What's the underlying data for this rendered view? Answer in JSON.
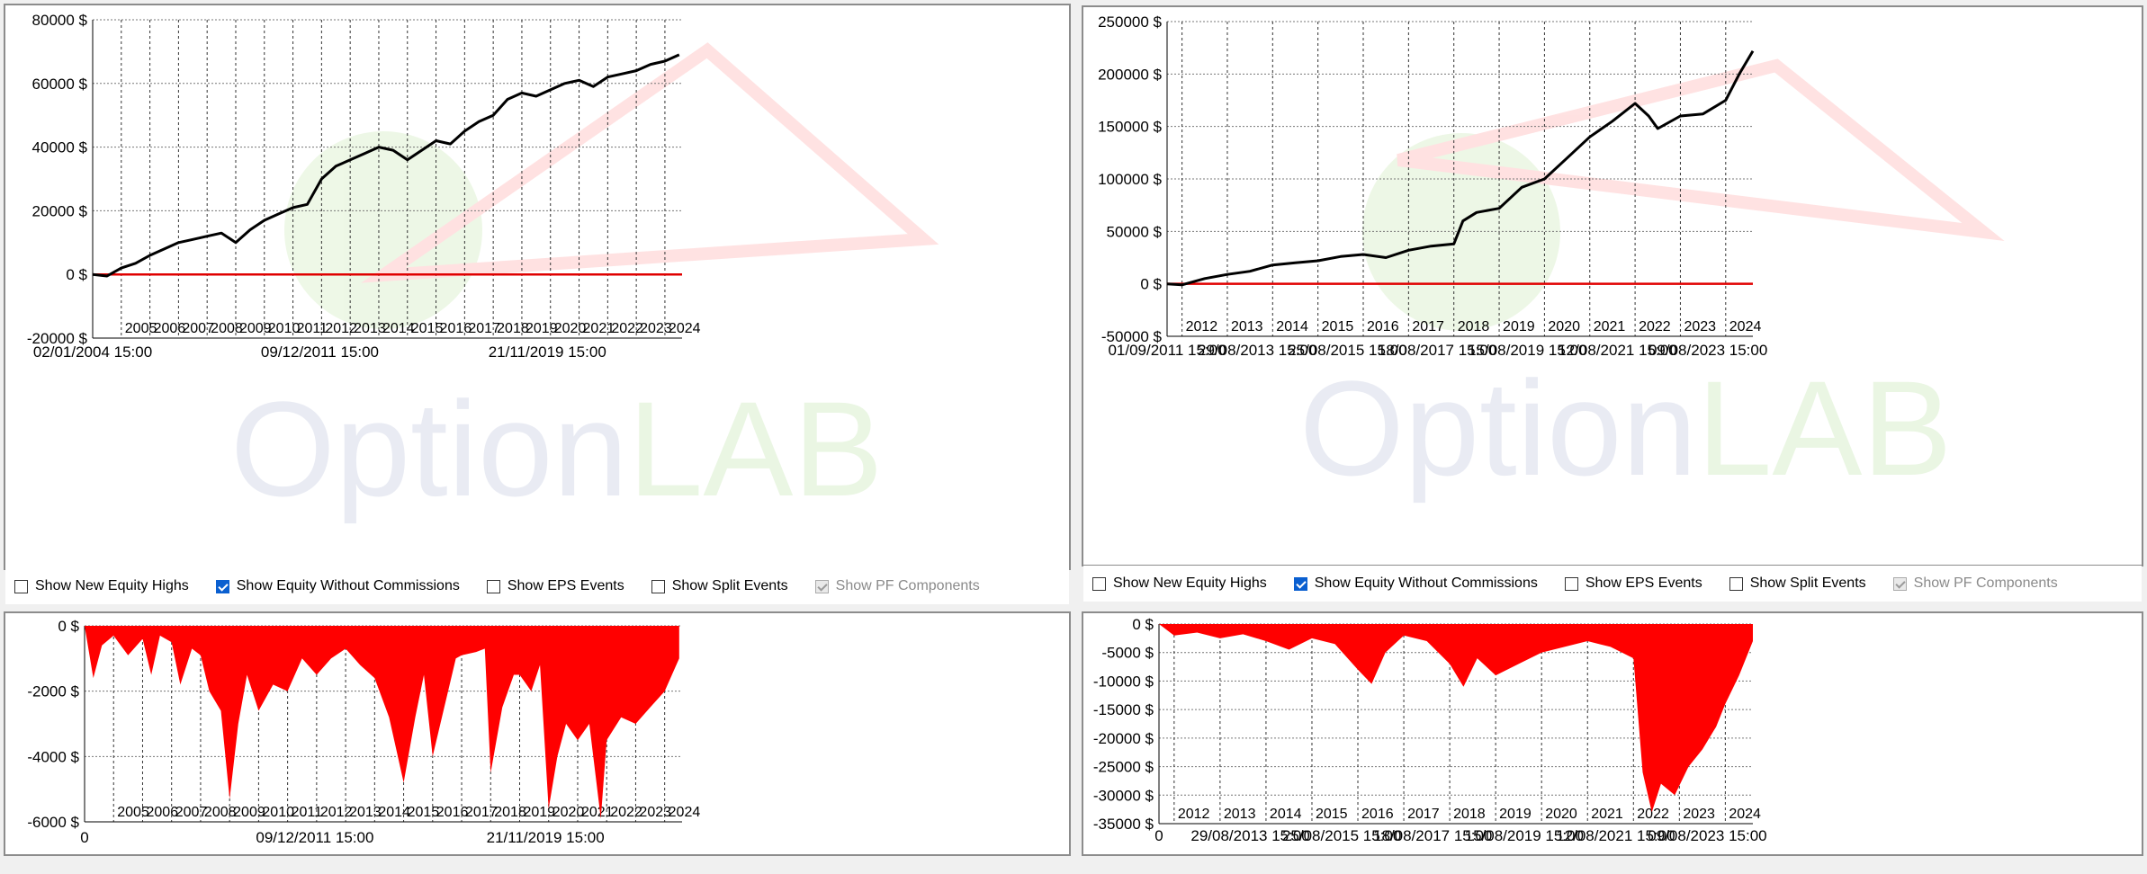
{
  "toolbar": {
    "show_new_equity_highs": "Show New Equity Highs",
    "show_equity_without_commissions": "Show Equity Without Commissions",
    "show_eps_events": "Show EPS Events",
    "show_split_events": "Show Split Events",
    "show_pf_components": "Show PF Components"
  },
  "chart_data": [
    {
      "type": "line",
      "id": "equity_left",
      "y_ticks": [
        "80000 $",
        "60000 $",
        "40000 $",
        "20000 $",
        "0 $",
        "-20000 $"
      ],
      "ylim": [
        -20000,
        80000
      ],
      "xlim": [
        2004.0,
        2024.6
      ],
      "year_labels": [
        "2005",
        "2006",
        "2007",
        "2008",
        "2009",
        "2010",
        "2011",
        "2012",
        "2013",
        "2014",
        "2015",
        "2016",
        "2017",
        "2018",
        "2019",
        "2020",
        "2021",
        "2022",
        "2023",
        "2024"
      ],
      "date_labels": [
        {
          "t": 2004.0,
          "label": "02/01/2004 15:00"
        },
        {
          "t": 2011.94,
          "label": "09/12/2011 15:00"
        },
        {
          "t": 2019.89,
          "label": "21/11/2019 15:00"
        }
      ],
      "equity": [
        [
          2004.0,
          0
        ],
        [
          2004.5,
          -500
        ],
        [
          2005,
          2000
        ],
        [
          2005.5,
          3500
        ],
        [
          2006,
          6000
        ],
        [
          2006.5,
          8000
        ],
        [
          2007,
          10000
        ],
        [
          2007.5,
          11000
        ],
        [
          2008,
          12000
        ],
        [
          2008.5,
          13000
        ],
        [
          2009,
          10000
        ],
        [
          2009.5,
          14000
        ],
        [
          2010,
          17000
        ],
        [
          2010.5,
          19000
        ],
        [
          2011,
          21000
        ],
        [
          2011.5,
          22000
        ],
        [
          2012,
          30000
        ],
        [
          2012.5,
          34000
        ],
        [
          2013,
          36000
        ],
        [
          2013.5,
          38000
        ],
        [
          2014,
          40000
        ],
        [
          2014.5,
          39000
        ],
        [
          2015,
          36000
        ],
        [
          2015.5,
          39000
        ],
        [
          2016,
          42000
        ],
        [
          2016.5,
          41000
        ],
        [
          2017,
          45000
        ],
        [
          2017.5,
          48000
        ],
        [
          2018,
          50000
        ],
        [
          2018.5,
          55000
        ],
        [
          2019,
          57000
        ],
        [
          2019.5,
          56000
        ],
        [
          2020,
          58000
        ],
        [
          2020.5,
          60000
        ],
        [
          2021,
          61000
        ],
        [
          2021.5,
          59000
        ],
        [
          2022,
          62000
        ],
        [
          2022.5,
          63000
        ],
        [
          2023,
          64000
        ],
        [
          2023.5,
          66000
        ],
        [
          2024,
          67000
        ],
        [
          2024.5,
          69000
        ]
      ],
      "zero_line_color": "#e00000",
      "line_color": "#000000"
    },
    {
      "type": "line",
      "id": "equity_right",
      "y_ticks": [
        "250000 $",
        "200000 $",
        "150000 $",
        "100000 $",
        "50000 $",
        "0 $",
        "-50000 $"
      ],
      "ylim": [
        -50000,
        250000
      ],
      "xlim": [
        2011.67,
        2024.6
      ],
      "year_labels": [
        "2012",
        "2013",
        "2014",
        "2015",
        "2016",
        "2017",
        "2018",
        "2019",
        "2020",
        "2021",
        "2022",
        "2023",
        "2024"
      ],
      "date_labels": [
        {
          "t": 2011.67,
          "label": "01/09/2011 15:00"
        },
        {
          "t": 2013.66,
          "label": "29/08/2013 15:00"
        },
        {
          "t": 2015.65,
          "label": "25/08/2015 15:00"
        },
        {
          "t": 2017.63,
          "label": "18/08/2017 15:00"
        },
        {
          "t": 2019.62,
          "label": "15/08/2019 15:00"
        },
        {
          "t": 2021.61,
          "label": "12/08/2021 15:00"
        },
        {
          "t": 2023.61,
          "label": "09/08/2023 15:00"
        }
      ],
      "equity": [
        [
          2011.67,
          0
        ],
        [
          2012,
          -1000
        ],
        [
          2012.5,
          5000
        ],
        [
          2013,
          9000
        ],
        [
          2013.5,
          12000
        ],
        [
          2014,
          18000
        ],
        [
          2014.5,
          20000
        ],
        [
          2015,
          22000
        ],
        [
          2015.5,
          26000
        ],
        [
          2016,
          28000
        ],
        [
          2016.5,
          25000
        ],
        [
          2017,
          32000
        ],
        [
          2017.5,
          36000
        ],
        [
          2018,
          38000
        ],
        [
          2018.2,
          60000
        ],
        [
          2018.5,
          68000
        ],
        [
          2019,
          72000
        ],
        [
          2019.5,
          92000
        ],
        [
          2020,
          100000
        ],
        [
          2020.5,
          120000
        ],
        [
          2021,
          140000
        ],
        [
          2021.5,
          155000
        ],
        [
          2022,
          172000
        ],
        [
          2022.3,
          160000
        ],
        [
          2022.5,
          148000
        ],
        [
          2023,
          160000
        ],
        [
          2023.5,
          162000
        ],
        [
          2024,
          175000
        ],
        [
          2024.3,
          200000
        ],
        [
          2024.6,
          222000
        ]
      ],
      "zero_line_color": "#e00000",
      "line_color": "#000000"
    },
    {
      "type": "area",
      "id": "drawdown_left",
      "y_ticks": [
        "0 $",
        "-2000 $",
        "-4000 $",
        "-6000 $"
      ],
      "ylim": [
        -6000,
        0
      ],
      "xlim": [
        2004.0,
        2024.6
      ],
      "year_labels": [
        "2005",
        "2006",
        "2007",
        "2008",
        "2009",
        "2010",
        "2011",
        "2012",
        "2013",
        "2014",
        "2015",
        "2016",
        "2017",
        "2018",
        "2019",
        "2020",
        "2021",
        "2022",
        "2023",
        "2024"
      ],
      "date_labels": [
        {
          "t": 2004.0,
          "label": "0"
        },
        {
          "t": 2011.94,
          "label": "09/12/2011 15:00"
        },
        {
          "t": 2019.89,
          "label": "21/11/2019 15:00"
        }
      ],
      "drawdown": [
        [
          2004.0,
          0
        ],
        [
          2004.3,
          -1600
        ],
        [
          2004.6,
          -600
        ],
        [
          2005,
          -300
        ],
        [
          2005.5,
          -900
        ],
        [
          2006,
          -400
        ],
        [
          2006.3,
          -1500
        ],
        [
          2006.6,
          -300
        ],
        [
          2007,
          -500
        ],
        [
          2007.3,
          -1800
        ],
        [
          2007.7,
          -700
        ],
        [
          2008,
          -900
        ],
        [
          2008.3,
          -2000
        ],
        [
          2008.7,
          -2600
        ],
        [
          2009,
          -5300
        ],
        [
          2009.3,
          -3000
        ],
        [
          2009.6,
          -1500
        ],
        [
          2010,
          -2600
        ],
        [
          2010.5,
          -1800
        ],
        [
          2011,
          -2000
        ],
        [
          2011.5,
          -1000
        ],
        [
          2012,
          -1500
        ],
        [
          2012.5,
          -1000
        ],
        [
          2013,
          -700
        ],
        [
          2013.5,
          -1200
        ],
        [
          2014,
          -1600
        ],
        [
          2014.5,
          -2800
        ],
        [
          2015,
          -4800
        ],
        [
          2015.4,
          -2800
        ],
        [
          2015.7,
          -1500
        ],
        [
          2016,
          -4000
        ],
        [
          2016.4,
          -2500
        ],
        [
          2016.8,
          -1000
        ],
        [
          2017,
          -900
        ],
        [
          2017.5,
          -800
        ],
        [
          2017.8,
          -700
        ],
        [
          2018,
          -4500
        ],
        [
          2018.4,
          -2500
        ],
        [
          2018.8,
          -1500
        ],
        [
          2019,
          -1500
        ],
        [
          2019.4,
          -2000
        ],
        [
          2019.7,
          -1200
        ],
        [
          2020,
          -5600
        ],
        [
          2020.3,
          -4000
        ],
        [
          2020.6,
          -3000
        ],
        [
          2021,
          -3500
        ],
        [
          2021.4,
          -3000
        ],
        [
          2021.8,
          -5900
        ],
        [
          2022,
          -3500
        ],
        [
          2022.5,
          -2800
        ],
        [
          2023,
          -3000
        ],
        [
          2023.5,
          -2500
        ],
        [
          2024,
          -2000
        ],
        [
          2024.5,
          -1000
        ]
      ],
      "fill_color": "#ff0000"
    },
    {
      "type": "area",
      "id": "drawdown_right",
      "y_ticks": [
        "0 $",
        "-5000 $",
        "-10000 $",
        "-15000 $",
        "-20000 $",
        "-25000 $",
        "-30000 $",
        "-35000 $"
      ],
      "ylim": [
        -35000,
        0
      ],
      "xlim": [
        2011.67,
        2024.6
      ],
      "year_labels": [
        "2012",
        "2013",
        "2014",
        "2015",
        "2016",
        "2017",
        "2018",
        "2019",
        "2020",
        "2021",
        "2022",
        "2023",
        "2024"
      ],
      "date_labels": [
        {
          "t": 2011.67,
          "label": "0"
        },
        {
          "t": 2013.66,
          "label": "29/08/2013 15:00"
        },
        {
          "t": 2015.65,
          "label": "25/08/2015 15:00"
        },
        {
          "t": 2017.63,
          "label": "18/08/2017 15:00"
        },
        {
          "t": 2019.62,
          "label": "15/08/2019 15:00"
        },
        {
          "t": 2021.61,
          "label": "12/08/2021 15:00"
        },
        {
          "t": 2023.61,
          "label": "09/08/2023 15:00"
        }
      ],
      "drawdown": [
        [
          2011.67,
          0
        ],
        [
          2012,
          -2000
        ],
        [
          2012.5,
          -1500
        ],
        [
          2013,
          -2500
        ],
        [
          2013.5,
          -1800
        ],
        [
          2014,
          -3000
        ],
        [
          2014.5,
          -4500
        ],
        [
          2015,
          -2500
        ],
        [
          2015.5,
          -3500
        ],
        [
          2016,
          -8000
        ],
        [
          2016.3,
          -10500
        ],
        [
          2016.6,
          -5000
        ],
        [
          2017,
          -2000
        ],
        [
          2017.5,
          -3000
        ],
        [
          2018,
          -7000
        ],
        [
          2018.3,
          -11000
        ],
        [
          2018.6,
          -6000
        ],
        [
          2019,
          -9000
        ],
        [
          2019.5,
          -7000
        ],
        [
          2020,
          -5000
        ],
        [
          2020.5,
          -4000
        ],
        [
          2021,
          -3000
        ],
        [
          2021.5,
          -4000
        ],
        [
          2022,
          -6000
        ],
        [
          2022.2,
          -26000
        ],
        [
          2022.4,
          -33000
        ],
        [
          2022.6,
          -28000
        ],
        [
          2022.9,
          -30000
        ],
        [
          2023.2,
          -25000
        ],
        [
          2023.5,
          -22000
        ],
        [
          2023.8,
          -18000
        ],
        [
          2024,
          -14000
        ],
        [
          2024.3,
          -9000
        ],
        [
          2024.6,
          -3000
        ]
      ],
      "fill_color": "#ff0000"
    }
  ]
}
